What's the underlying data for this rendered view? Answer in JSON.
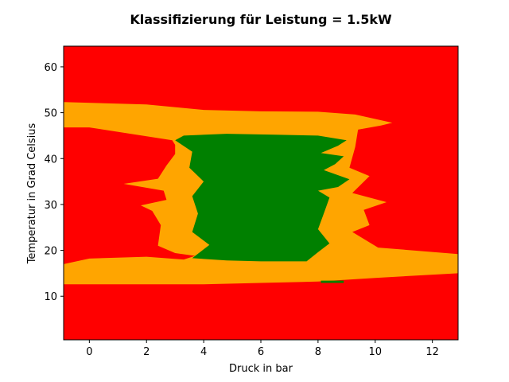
{
  "chart_data": {
    "type": "heatmap",
    "title": "Klassifizierung für Leistung = 1.5kW",
    "xlabel": "Druck in bar",
    "ylabel": "Temperatur in Grad Celsius",
    "xlim": [
      -0.9,
      12.9
    ],
    "ylim": [
      0.5,
      64.5
    ],
    "xticks": [
      0,
      2,
      4,
      6,
      8,
      10,
      12
    ],
    "yticks": [
      10,
      20,
      30,
      40,
      50,
      60
    ],
    "grid": false,
    "legend": "none",
    "classes": [
      {
        "color": "#ff0000"
      },
      {
        "color": "#ffa500"
      },
      {
        "color": "#008000"
      }
    ],
    "regions": [
      {
        "class": 1,
        "polygon": [
          [
            -0.9,
            52.3
          ],
          [
            2,
            51.8
          ],
          [
            4,
            50.6
          ],
          [
            6,
            50.3
          ],
          [
            8,
            50.2
          ],
          [
            9.3,
            49.6
          ],
          [
            10.6,
            47.8
          ],
          [
            10.2,
            47.2
          ],
          [
            9.4,
            46.3
          ],
          [
            9.3,
            42.5
          ],
          [
            9.1,
            38.0
          ],
          [
            9.8,
            36.2
          ],
          [
            9.2,
            32.5
          ],
          [
            10.4,
            30.5
          ],
          [
            9.6,
            28.8
          ],
          [
            9.8,
            25.5
          ],
          [
            9.2,
            24.0
          ],
          [
            10.1,
            20.6
          ],
          [
            12.9,
            19.2
          ],
          [
            12.9,
            15.0
          ],
          [
            10,
            14.0
          ],
          [
            8,
            13.2
          ],
          [
            6,
            12.9
          ],
          [
            4,
            12.6
          ],
          [
            2,
            12.6
          ],
          [
            -0.9,
            12.6
          ],
          [
            -0.9,
            17.0
          ],
          [
            0,
            18.2
          ],
          [
            2,
            18.6
          ],
          [
            3.3,
            18.0
          ],
          [
            3.7,
            18.8
          ],
          [
            3.0,
            19.4
          ],
          [
            2.4,
            21.0
          ],
          [
            2.5,
            25.5
          ],
          [
            2.2,
            28.6
          ],
          [
            1.8,
            29.8
          ],
          [
            2.7,
            31.0
          ],
          [
            2.6,
            33.0
          ],
          [
            1.2,
            34.5
          ],
          [
            2.4,
            35.6
          ],
          [
            2.7,
            38.5
          ],
          [
            3.0,
            41.0
          ],
          [
            3.0,
            43.0
          ],
          [
            2.9,
            44.0
          ],
          [
            0,
            46.8
          ],
          [
            -0.9,
            46.8
          ]
        ]
      },
      {
        "class": 0,
        "polygon": [
          [
            3.3,
            44.0
          ],
          [
            3.35,
            43.3
          ],
          [
            3.7,
            43.0
          ],
          [
            3.8,
            44.2
          ],
          [
            3.5,
            44.6
          ]
        ]
      },
      {
        "class": 2,
        "polygon": [
          [
            3.0,
            44.0
          ],
          [
            3.3,
            45.0
          ],
          [
            4.8,
            45.4
          ],
          [
            6.5,
            45.2
          ],
          [
            8.0,
            45.0
          ],
          [
            9.0,
            44.0
          ],
          [
            8.7,
            42.8
          ],
          [
            8.1,
            41.2
          ],
          [
            8.9,
            40.5
          ],
          [
            8.6,
            38.8
          ],
          [
            8.2,
            37.5
          ],
          [
            9.1,
            35.5
          ],
          [
            8.7,
            33.8
          ],
          [
            8.0,
            33.0
          ],
          [
            8.4,
            31.5
          ],
          [
            8.2,
            28.0
          ],
          [
            8.0,
            24.6
          ],
          [
            8.4,
            21.5
          ],
          [
            8.0,
            19.6
          ],
          [
            7.6,
            17.6
          ],
          [
            6.0,
            17.6
          ],
          [
            4.8,
            17.8
          ],
          [
            3.6,
            18.3
          ],
          [
            4.2,
            21.2
          ],
          [
            3.6,
            24.0
          ],
          [
            3.8,
            28.0
          ],
          [
            3.6,
            31.8
          ],
          [
            4.0,
            35.0
          ],
          [
            3.5,
            38.0
          ],
          [
            3.6,
            41.5
          ]
        ]
      },
      {
        "class": 2,
        "polygon": [
          [
            8.1,
            13.4
          ],
          [
            8.9,
            13.4
          ],
          [
            8.9,
            12.9
          ],
          [
            8.1,
            12.9
          ]
        ]
      }
    ]
  }
}
